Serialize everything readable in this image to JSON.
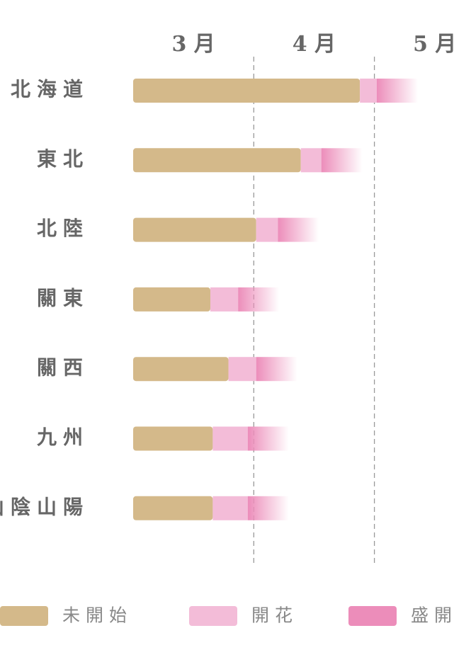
{
  "chart_data": {
    "type": "stacked-barh",
    "categories": [
      "北海道",
      "東北",
      "北陸",
      "關東",
      "關西",
      "九州",
      "山陰山陽"
    ],
    "series": [
      {
        "name": "未開始",
        "color": "#d4b98a",
        "values": [
          1.88,
          1.39,
          1.02,
          0.64,
          0.79,
          0.66,
          0.66
        ]
      },
      {
        "name": "開花",
        "color": "#f3bcd8",
        "values": [
          0.14,
          0.17,
          0.18,
          0.23,
          0.23,
          0.29,
          0.29
        ]
      },
      {
        "name": "盛開",
        "color": "#ec8dba",
        "gradient": true,
        "values": [
          0.34,
          0.34,
          0.34,
          0.34,
          0.34,
          0.34,
          0.34
        ]
      }
    ],
    "xlim": [
      0,
      2.66
    ],
    "xticks": [
      {
        "value": 0.5,
        "label": "3 月"
      },
      {
        "value": 1.5,
        "label": "4 月"
      },
      {
        "value": 2.5,
        "label": "5 月"
      }
    ],
    "month_boundaries": [
      1,
      2
    ]
  }
}
